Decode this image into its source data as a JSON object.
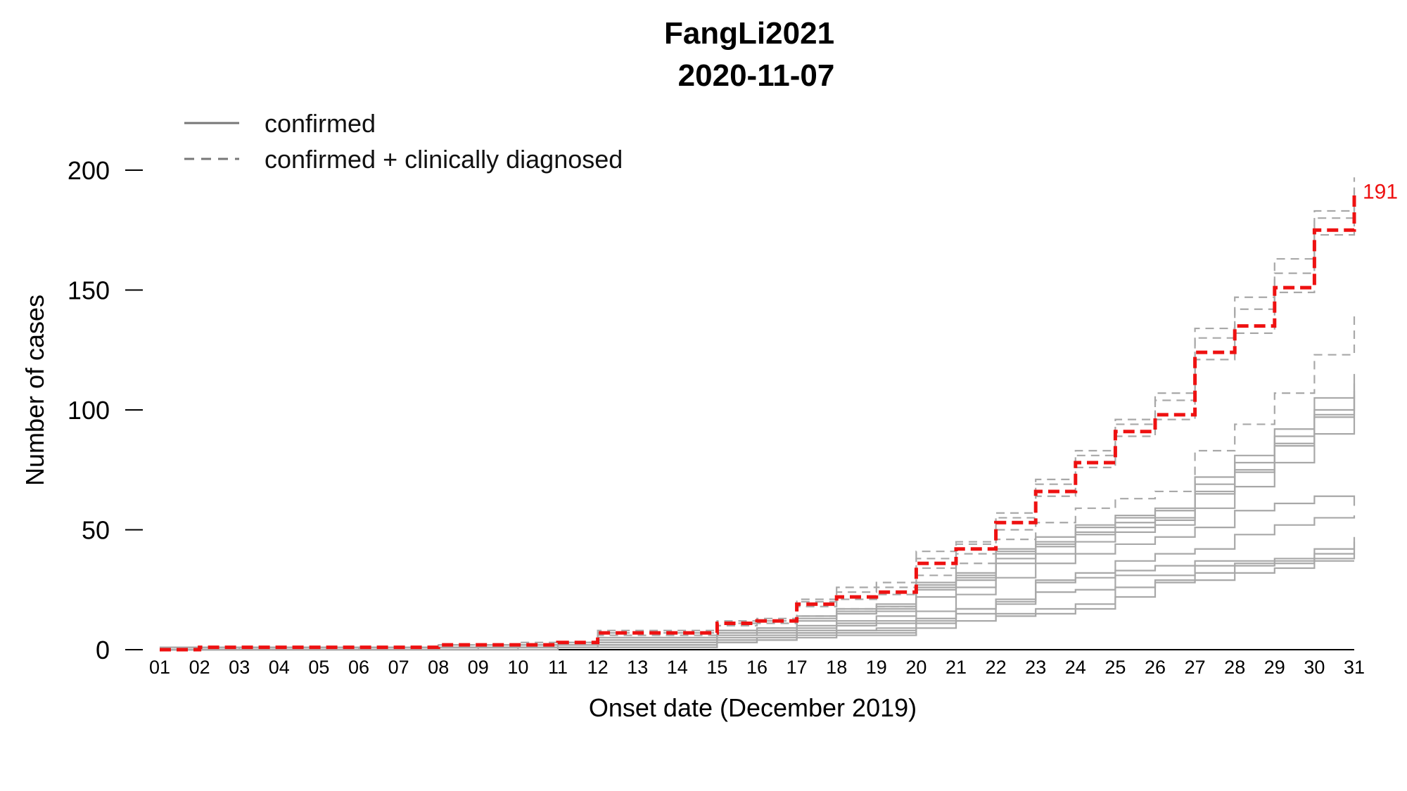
{
  "chart_data": {
    "type": "line",
    "title": "FangLi2021",
    "subtitle": "2020-11-07",
    "xlabel": "Onset date (December 2019)",
    "ylabel": "Number of cases",
    "x": [
      "01",
      "02",
      "03",
      "04",
      "05",
      "06",
      "07",
      "08",
      "09",
      "10",
      "11",
      "12",
      "13",
      "14",
      "15",
      "16",
      "17",
      "18",
      "19",
      "20",
      "21",
      "22",
      "23",
      "24",
      "25",
      "26",
      "27",
      "28",
      "29",
      "30",
      "31"
    ],
    "ylim": [
      0,
      200
    ],
    "yticks": [
      "0",
      "50",
      "100",
      "150",
      "200"
    ],
    "grid": false,
    "legend": {
      "position": "top-left",
      "entries": [
        {
          "label": "confirmed",
          "style": "solid"
        },
        {
          "label": "confirmed + clinically diagnosed",
          "style": "dashed"
        }
      ]
    },
    "highlight": {
      "values": [
        0,
        1,
        1,
        1,
        1,
        1,
        1,
        2,
        2,
        2,
        3,
        7,
        7,
        7,
        11,
        12,
        19,
        22,
        24,
        36,
        42,
        53,
        66,
        78,
        91,
        98,
        124,
        135,
        151,
        175,
        191
      ],
      "color": "#ee1111",
      "style": "dashed",
      "end_label": "191"
    },
    "series": [
      {
        "style": "dashed",
        "values": [
          1,
          1,
          1,
          1,
          1,
          1,
          1,
          2,
          2,
          3,
          3,
          8,
          8,
          8,
          12,
          13,
          21,
          26,
          28,
          41,
          45,
          57,
          71,
          83,
          96,
          107,
          134,
          147,
          163,
          183,
          197
        ]
      },
      {
        "style": "dashed",
        "values": [
          0,
          1,
          1,
          1,
          1,
          1,
          1,
          2,
          2,
          2,
          3,
          7,
          7,
          7,
          11,
          12,
          20,
          24,
          26,
          38,
          44,
          55,
          69,
          81,
          94,
          104,
          130,
          142,
          157,
          180,
          192
        ]
      },
      {
        "style": "dashed",
        "values": [
          0,
          1,
          1,
          1,
          1,
          1,
          1,
          1,
          2,
          2,
          3,
          6,
          6,
          6,
          10,
          11,
          18,
          21,
          23,
          34,
          40,
          50,
          64,
          76,
          89,
          96,
          121,
          132,
          149,
          173,
          189
        ]
      },
      {
        "style": "dashed",
        "values": [
          0,
          0,
          0,
          1,
          1,
          1,
          1,
          1,
          1,
          2,
          2,
          5,
          5,
          5,
          8,
          9,
          14,
          17,
          18,
          31,
          36,
          46,
          53,
          59,
          63,
          66,
          83,
          94,
          107,
          123,
          139
        ]
      },
      {
        "style": "solid",
        "values": [
          1,
          1,
          1,
          1,
          1,
          1,
          1,
          1,
          2,
          2,
          3,
          5,
          5,
          5,
          8,
          9,
          14,
          17,
          19,
          28,
          32,
          42,
          47,
          52,
          56,
          59,
          72,
          81,
          92,
          105,
          115
        ]
      },
      {
        "style": "solid",
        "values": [
          0,
          1,
          1,
          1,
          1,
          1,
          1,
          1,
          2,
          2,
          2,
          5,
          5,
          5,
          8,
          9,
          13,
          16,
          18,
          27,
          31,
          41,
          45,
          51,
          55,
          58,
          69,
          78,
          89,
          100,
          111
        ]
      },
      {
        "style": "solid",
        "values": [
          0,
          0,
          1,
          1,
          1,
          1,
          1,
          1,
          2,
          2,
          2,
          4,
          4,
          4,
          7,
          8,
          12,
          15,
          17,
          26,
          30,
          40,
          44,
          49,
          53,
          55,
          66,
          75,
          86,
          98,
          108
        ]
      },
      {
        "style": "solid",
        "values": [
          0,
          0,
          0,
          1,
          1,
          1,
          1,
          1,
          1,
          2,
          2,
          4,
          4,
          4,
          7,
          8,
          12,
          15,
          16,
          25,
          29,
          38,
          43,
          48,
          51,
          54,
          65,
          74,
          85,
          97,
          106
        ]
      },
      {
        "style": "solid",
        "values": [
          0,
          0,
          0,
          0,
          1,
          1,
          1,
          1,
          1,
          2,
          2,
          3,
          3,
          3,
          6,
          7,
          10,
          12,
          14,
          22,
          26,
          36,
          40,
          45,
          49,
          52,
          59,
          68,
          78,
          90,
          97
        ]
      },
      {
        "style": "solid",
        "values": [
          0,
          0,
          0,
          0,
          0,
          1,
          1,
          1,
          1,
          1,
          2,
          3,
          3,
          3,
          6,
          6,
          9,
          11,
          12,
          16,
          23,
          30,
          36,
          40,
          44,
          47,
          51,
          58,
          61,
          64,
          60
        ]
      },
      {
        "style": "solid",
        "values": [
          0,
          0,
          0,
          0,
          0,
          0,
          1,
          1,
          1,
          1,
          1,
          2,
          2,
          2,
          5,
          5,
          8,
          10,
          11,
          13,
          17,
          21,
          29,
          32,
          37,
          40,
          42,
          48,
          52,
          55,
          56
        ]
      },
      {
        "style": "solid",
        "values": [
          0,
          0,
          0,
          0,
          0,
          0,
          0,
          1,
          1,
          1,
          1,
          2,
          2,
          2,
          4,
          5,
          7,
          8,
          9,
          13,
          17,
          20,
          28,
          30,
          33,
          35,
          37,
          37,
          38,
          42,
          47
        ]
      },
      {
        "style": "solid",
        "values": [
          0,
          0,
          0,
          0,
          0,
          0,
          0,
          0,
          1,
          1,
          1,
          2,
          2,
          2,
          4,
          5,
          7,
          8,
          8,
          12,
          15,
          19,
          24,
          25,
          31,
          31,
          35,
          36,
          37,
          40,
          45
        ]
      },
      {
        "style": "solid",
        "values": [
          0,
          0,
          0,
          0,
          0,
          0,
          0,
          0,
          0,
          1,
          1,
          1,
          1,
          1,
          3,
          4,
          6,
          7,
          7,
          11,
          12,
          15,
          17,
          19,
          26,
          29,
          32,
          35,
          36,
          38,
          40
        ]
      },
      {
        "style": "solid",
        "values": [
          0,
          0,
          0,
          0,
          0,
          0,
          0,
          0,
          0,
          0,
          1,
          1,
          1,
          1,
          3,
          4,
          5,
          6,
          6,
          9,
          12,
          14,
          15,
          17,
          22,
          28,
          29,
          32,
          34,
          37,
          37
        ]
      }
    ]
  }
}
